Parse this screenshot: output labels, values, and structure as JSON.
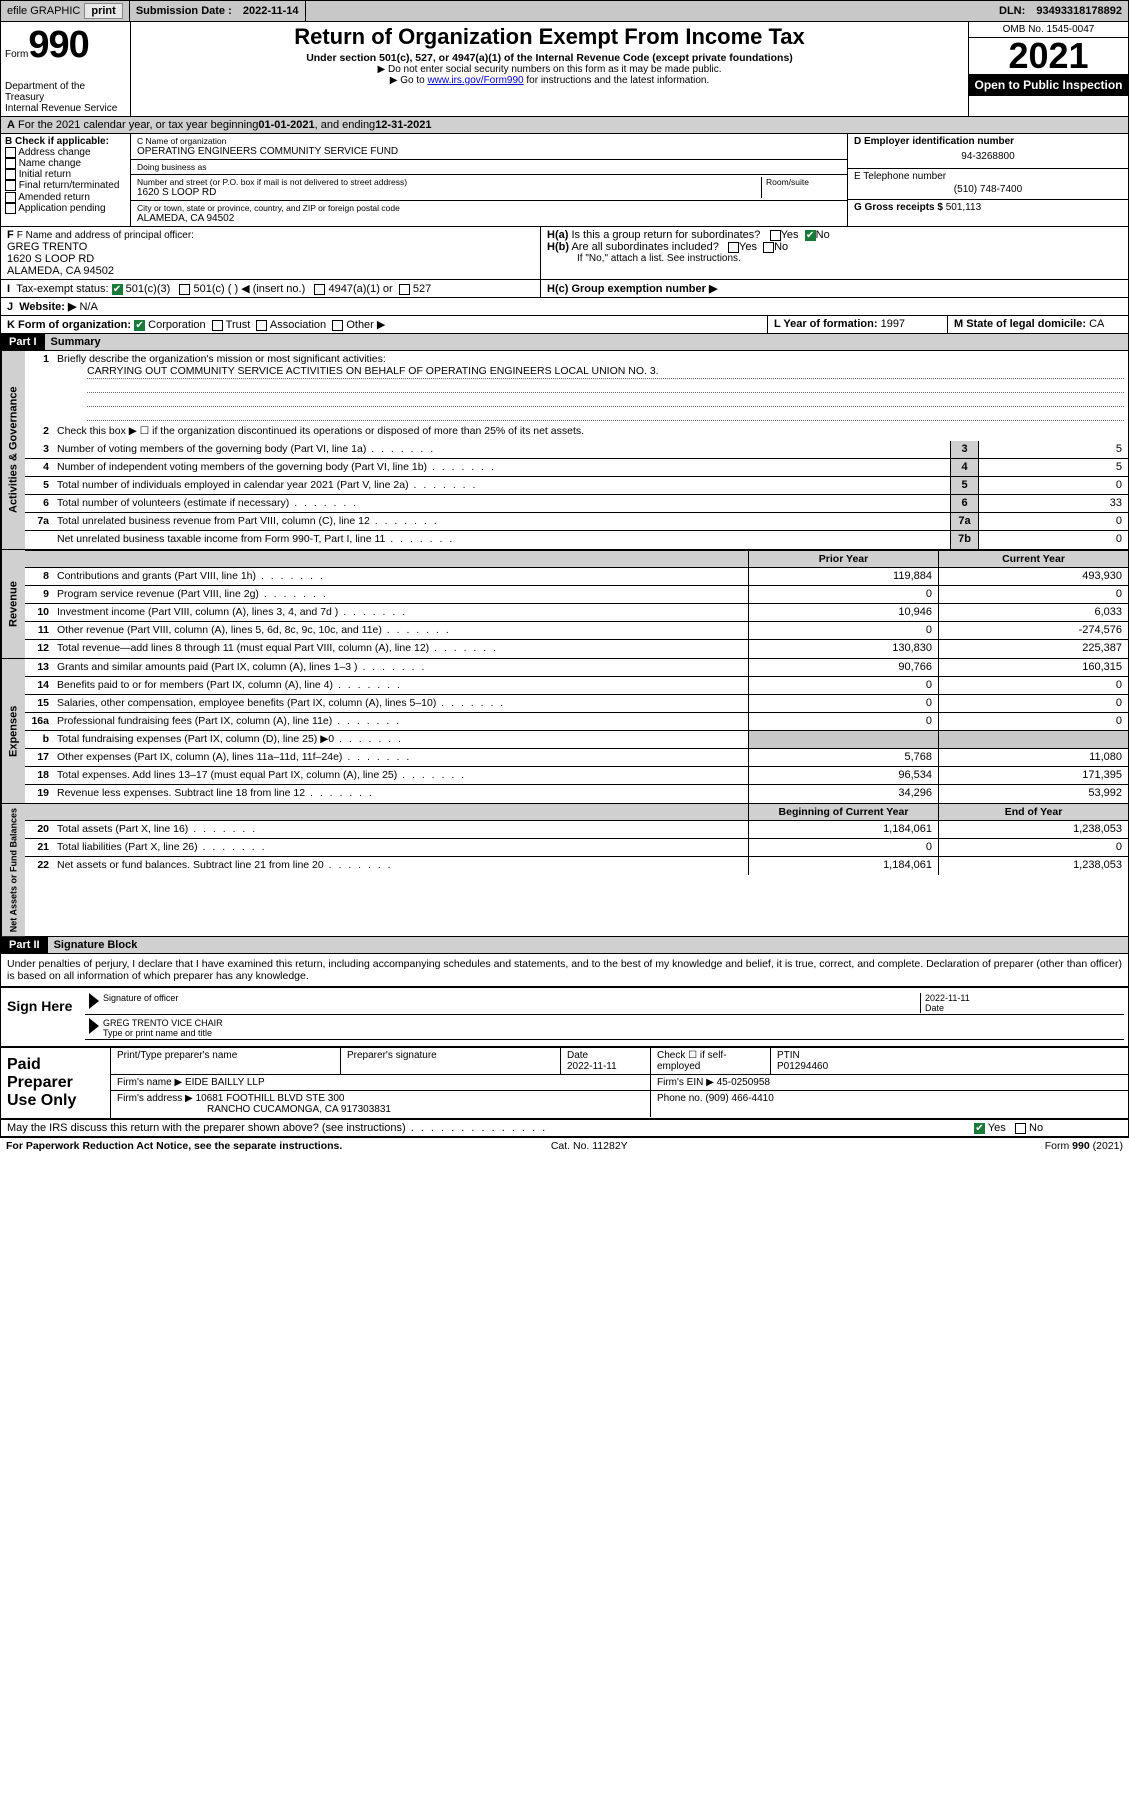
{
  "topbar": {
    "efile_label": "efile GRAPHIC",
    "print_btn": "print",
    "subdate_label": "Submission Date :",
    "subdate": "2022-11-14",
    "dln_label": "DLN:",
    "dln": "93493318178892"
  },
  "header": {
    "form_prefix": "Form",
    "form_num": "990",
    "dept": "Department of the Treasury",
    "irs": "Internal Revenue Service",
    "title": "Return of Organization Exempt From Income Tax",
    "sub1": "Under section 501(c), 527, or 4947(a)(1) of the Internal Revenue Code (except private foundations)",
    "sub2": "▶ Do not enter social security numbers on this form as it may be made public.",
    "sub3_pre": "▶ Go to ",
    "sub3_link": "www.irs.gov/Form990",
    "sub3_post": " for instructions and the latest information.",
    "omb": "OMB No. 1545-0047",
    "year": "2021",
    "open": "Open to Public Inspection"
  },
  "sectionA": {
    "text_pre": "For the 2021 calendar year, or tax year beginning ",
    "begin": "01-01-2021",
    "mid": " , and ending ",
    "end": "12-31-2021"
  },
  "sectionB": {
    "hdr": "B Check if applicable:",
    "items": [
      "Address change",
      "Name change",
      "Initial return",
      "Final return/terminated",
      "Amended return",
      "Application pending"
    ]
  },
  "sectionC": {
    "name_lbl": "C Name of organization",
    "name": "OPERATING ENGINEERS COMMUNITY SERVICE FUND",
    "dba_lbl": "Doing business as",
    "dba": "",
    "street_lbl": "Number and street (or P.O. box if mail is not delivered to street address)",
    "room_lbl": "Room/suite",
    "street": "1620 S LOOP RD",
    "city_lbl": "City or town, state or province, country, and ZIP or foreign postal code",
    "city": "ALAMEDA, CA  94502"
  },
  "sectionD": {
    "lbl": "D Employer identification number",
    "val": "94-3268800"
  },
  "sectionE": {
    "lbl": "E Telephone number",
    "val": "(510) 748-7400"
  },
  "sectionG": {
    "lbl": "G Gross receipts $",
    "val": "501,113"
  },
  "sectionF": {
    "lbl": "F Name and address of principal officer:",
    "name": "GREG TRENTO",
    "addr1": "1620 S LOOP RD",
    "addr2": "ALAMEDA, CA  94502"
  },
  "sectionH": {
    "a_lbl": "H(a)  Is this a group return for subordinates?",
    "a_yes": "Yes",
    "a_no": "No",
    "b_lbl": "H(b)  Are all subordinates included?",
    "b_note": "If \"No,\" attach a list. See instructions.",
    "c_lbl": "H(c)  Group exemption number ▶"
  },
  "sectionI": {
    "lbl": "Tax-exempt status:",
    "c3": "501(c)(3)",
    "c_other": "501(c) (  ) ◀ (insert no.)",
    "a1": "4947(a)(1) or",
    "s527": "527"
  },
  "sectionJ": {
    "lbl": "Website: ▶",
    "val": "N/A"
  },
  "sectionK": {
    "lbl": "K Form of organization:",
    "opts": [
      "Corporation",
      "Trust",
      "Association",
      "Other ▶"
    ]
  },
  "sectionL": {
    "lbl": "L Year of formation:",
    "val": "1997"
  },
  "sectionM": {
    "lbl": "M State of legal domicile:",
    "val": "CA"
  },
  "part1": {
    "hdr": "Part I",
    "title": "Summary",
    "l1": "Briefly describe the organization's mission or most significant activities:",
    "mission": "CARRYING OUT COMMUNITY SERVICE ACTIVITIES ON BEHALF OF OPERATING ENGINEERS LOCAL UNION NO. 3.",
    "l2": "Check this box ▶ ☐  if the organization discontinued its operations or disposed of more than 25% of its net assets.",
    "rows_single": [
      {
        "n": "3",
        "t": "Number of voting members of the governing body (Part VI, line 1a)",
        "box": "3",
        "v": "5"
      },
      {
        "n": "4",
        "t": "Number of independent voting members of the governing body (Part VI, line 1b)",
        "box": "4",
        "v": "5"
      },
      {
        "n": "5",
        "t": "Total number of individuals employed in calendar year 2021 (Part V, line 2a)",
        "box": "5",
        "v": "0"
      },
      {
        "n": "6",
        "t": "Total number of volunteers (estimate if necessary)",
        "box": "6",
        "v": "33"
      },
      {
        "n": "7a",
        "t": "Total unrelated business revenue from Part VIII, column (C), line 12",
        "box": "7a",
        "v": "0"
      },
      {
        "n": "",
        "t": "Net unrelated business taxable income from Form 990-T, Part I, line 11",
        "box": "7b",
        "v": "0"
      }
    ],
    "col_hdr1": "Prior Year",
    "col_hdr2": "Current Year",
    "revenue_tab": "Revenue",
    "revenue": [
      {
        "n": "8",
        "t": "Contributions and grants (Part VIII, line 1h)",
        "v1": "119,884",
        "v2": "493,930"
      },
      {
        "n": "9",
        "t": "Program service revenue (Part VIII, line 2g)",
        "v1": "0",
        "v2": "0"
      },
      {
        "n": "10",
        "t": "Investment income (Part VIII, column (A), lines 3, 4, and 7d )",
        "v1": "10,946",
        "v2": "6,033"
      },
      {
        "n": "11",
        "t": "Other revenue (Part VIII, column (A), lines 5, 6d, 8c, 9c, 10c, and 11e)",
        "v1": "0",
        "v2": "-274,576"
      },
      {
        "n": "12",
        "t": "Total revenue—add lines 8 through 11 (must equal Part VIII, column (A), line 12)",
        "v1": "130,830",
        "v2": "225,387"
      }
    ],
    "expenses_tab": "Expenses",
    "expenses": [
      {
        "n": "13",
        "t": "Grants and similar amounts paid (Part IX, column (A), lines 1–3 )",
        "v1": "90,766",
        "v2": "160,315"
      },
      {
        "n": "14",
        "t": "Benefits paid to or for members (Part IX, column (A), line 4)",
        "v1": "0",
        "v2": "0"
      },
      {
        "n": "15",
        "t": "Salaries, other compensation, employee benefits (Part IX, column (A), lines 5–10)",
        "v1": "0",
        "v2": "0"
      },
      {
        "n": "16a",
        "t": "Professional fundraising fees (Part IX, column (A), line 11e)",
        "v1": "0",
        "v2": "0"
      },
      {
        "n": "b",
        "t": "Total fundraising expenses (Part IX, column (D), line 25) ▶0",
        "v1": "",
        "v2": "",
        "shade": true
      },
      {
        "n": "17",
        "t": "Other expenses (Part IX, column (A), lines 11a–11d, 11f–24e)",
        "v1": "5,768",
        "v2": "11,080"
      },
      {
        "n": "18",
        "t": "Total expenses. Add lines 13–17 (must equal Part IX, column (A), line 25)",
        "v1": "96,534",
        "v2": "171,395"
      },
      {
        "n": "19",
        "t": "Revenue less expenses. Subtract line 18 from line 12",
        "v1": "34,296",
        "v2": "53,992"
      }
    ],
    "net_tab": "Net Assets or Fund Balances",
    "net_hdr1": "Beginning of Current Year",
    "net_hdr2": "End of Year",
    "net": [
      {
        "n": "20",
        "t": "Total assets (Part X, line 16)",
        "v1": "1,184,061",
        "v2": "1,238,053"
      },
      {
        "n": "21",
        "t": "Total liabilities (Part X, line 26)",
        "v1": "0",
        "v2": "0"
      },
      {
        "n": "22",
        "t": "Net assets or fund balances. Subtract line 21 from line 20",
        "v1": "1,184,061",
        "v2": "1,238,053"
      }
    ],
    "gov_tab": "Activities & Governance"
  },
  "part2": {
    "hdr": "Part II",
    "title": "Signature Block",
    "penalty": "Under penalties of perjury, I declare that I have examined this return, including accompanying schedules and statements, and to the best of my knowledge and belief, it is true, correct, and complete. Declaration of preparer (other than officer) is based on all information of which preparer has any knowledge.",
    "sign_here": "Sign Here",
    "sig_officer_lbl": "Signature of officer",
    "sig_date_lbl": "Date",
    "sig_date": "2022-11-11",
    "sig_name": "GREG TRENTO  VICE CHAIR",
    "sig_name_lbl": "Type or print name and title",
    "paid": "Paid Preparer Use Only",
    "pp_name_lbl": "Print/Type preparer's name",
    "pp_sig_lbl": "Preparer's signature",
    "pp_date_lbl": "Date",
    "pp_date": "2022-11-11",
    "pp_check_lbl": "Check ☐ if self-employed",
    "pp_ptin_lbl": "PTIN",
    "pp_ptin": "P01294460",
    "firm_name_lbl": "Firm's name    ▶",
    "firm_name": "EIDE BAILLY LLP",
    "firm_ein_lbl": "Firm's EIN ▶",
    "firm_ein": "45-0250958",
    "firm_addr_lbl": "Firm's address ▶",
    "firm_addr1": "10681 FOOTHILL BLVD STE 300",
    "firm_addr2": "RANCHO CUCAMONGA, CA  917303831",
    "phone_lbl": "Phone no.",
    "phone": "(909) 466-4410",
    "may_irs": "May the IRS discuss this return with the preparer shown above? (see instructions)",
    "yes": "Yes",
    "no": "No"
  },
  "footer": {
    "left": "For Paperwork Reduction Act Notice, see the separate instructions.",
    "mid": "Cat. No. 11282Y",
    "right": "Form 990 (2021)"
  },
  "colors": {
    "header_bg": "#c8c8c8",
    "shade_bg": "#d0d0d0",
    "black": "#000000",
    "check_green": "#1a7a3a",
    "link": "#0000cc"
  }
}
